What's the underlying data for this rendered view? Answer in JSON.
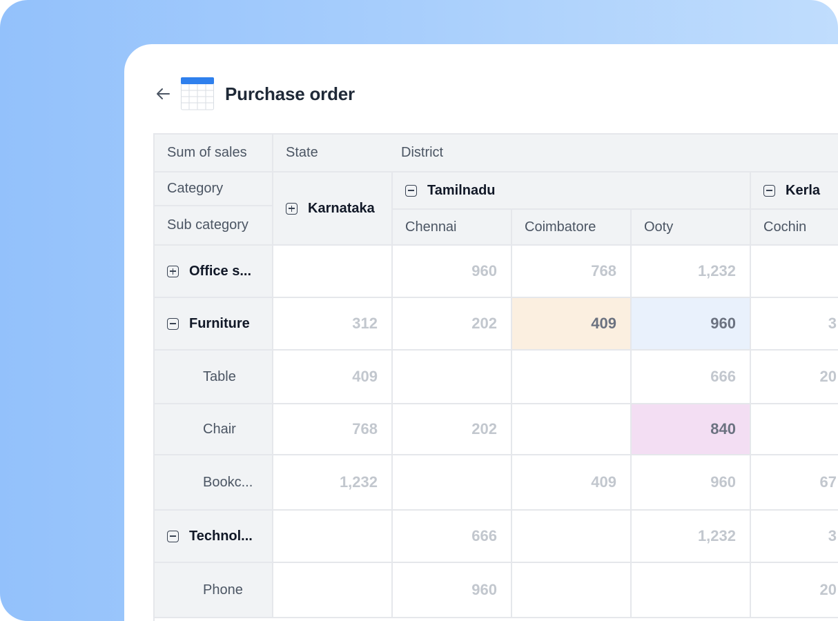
{
  "page": {
    "title": "Purchase order"
  },
  "pivot": {
    "corner": {
      "measure": "Sum of sales",
      "row_field_1": "Category",
      "row_field_2": "Sub category"
    },
    "column_fields": {
      "state": "State",
      "district": "District"
    },
    "states": [
      {
        "name": "Karnataka",
        "expanded": false
      },
      {
        "name": "Tamilnadu",
        "expanded": true,
        "districts": [
          "Chennai",
          "Coimbatore",
          "Ooty"
        ]
      },
      {
        "name": "Kerla",
        "expanded": true,
        "districts": [
          "Cochin"
        ]
      }
    ],
    "rows": [
      {
        "label": "Office s...",
        "type": "group",
        "expanded": false,
        "values": [
          "",
          "960",
          "768",
          "1,232",
          ""
        ]
      },
      {
        "label": "Furniture",
        "type": "group",
        "expanded": true,
        "values": [
          "312",
          "202",
          "409",
          "960",
          "3"
        ]
      },
      {
        "label": "Table",
        "type": "sub",
        "values": [
          "409",
          "",
          "",
          "666",
          "20"
        ]
      },
      {
        "label": "Chair",
        "type": "sub",
        "values": [
          "768",
          "202",
          "",
          "840",
          ""
        ]
      },
      {
        "label": "Bookc...",
        "type": "sub",
        "values": [
          "1,232",
          "",
          "409",
          "960",
          "67"
        ]
      },
      {
        "label": "Technol...",
        "type": "group",
        "expanded": true,
        "values": [
          "",
          "666",
          "",
          "1,232",
          "3"
        ]
      },
      {
        "label": "Phone",
        "type": "sub",
        "values": [
          "",
          "960",
          "",
          "",
          "20"
        ]
      }
    ],
    "highlights": [
      {
        "row": 1,
        "col": 2,
        "color": "#fbefe0"
      },
      {
        "row": 1,
        "col": 3,
        "color": "#e9f1fc"
      },
      {
        "row": 3,
        "col": 3,
        "color": "#f3def3"
      }
    ]
  }
}
